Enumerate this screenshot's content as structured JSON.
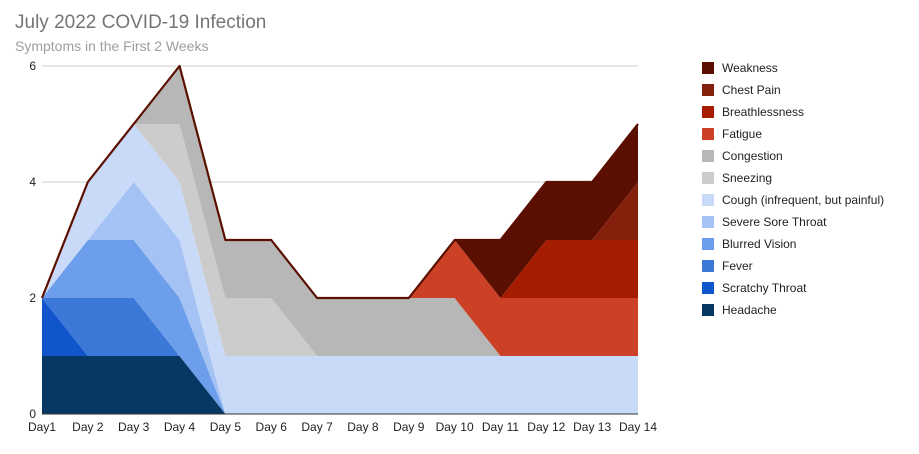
{
  "chart_data": {
    "type": "area",
    "stacked": true,
    "title": "July 2022 COVID-19 Infection",
    "subtitle": "Symptoms in the First 2 Weeks",
    "xlabel": "",
    "ylabel": "",
    "ylim": [
      0,
      6
    ],
    "yticks": [
      0,
      2,
      4,
      6
    ],
    "grid": true,
    "legend_position": "right",
    "categories": [
      "Day1",
      "Day 2",
      "Day 3",
      "Day 4",
      "Day 5",
      "Day 6",
      "Day 7",
      "Day 8",
      "Day 9",
      "Day 10",
      "Day 11",
      "Day 12",
      "Day 13",
      "Day 14"
    ],
    "series": [
      {
        "name": "Headache",
        "color": "#073763",
        "values": [
          1,
          1,
          1,
          1,
          0,
          0,
          0,
          0,
          0,
          0,
          0,
          0,
          0,
          0
        ]
      },
      {
        "name": "Scratchy Throat",
        "color": "#1155cc",
        "values": [
          1,
          0,
          0,
          0,
          0,
          0,
          0,
          0,
          0,
          0,
          0,
          0,
          0,
          0
        ]
      },
      {
        "name": "Fever",
        "color": "#3c78d8",
        "values": [
          0,
          1,
          1,
          0,
          0,
          0,
          0,
          0,
          0,
          0,
          0,
          0,
          0,
          0
        ]
      },
      {
        "name": "Blurred Vision",
        "color": "#6d9eeb",
        "values": [
          0,
          1,
          1,
          1,
          0,
          0,
          0,
          0,
          0,
          0,
          0,
          0,
          0,
          0
        ]
      },
      {
        "name": "Severe Sore Throat",
        "color": "#a4c2f4",
        "values": [
          0,
          0,
          1,
          1,
          0,
          0,
          0,
          0,
          0,
          0,
          0,
          0,
          0,
          0
        ]
      },
      {
        "name": "Cough (infrequent, but painful)",
        "color": "#c9daf8",
        "values": [
          0,
          1,
          1,
          1,
          1,
          1,
          1,
          1,
          1,
          1,
          1,
          1,
          1,
          1
        ]
      },
      {
        "name": "Sneezing",
        "color": "#cccccc",
        "values": [
          0,
          0,
          0,
          1,
          1,
          1,
          0,
          0,
          0,
          0,
          0,
          0,
          0,
          0
        ]
      },
      {
        "name": "Congestion",
        "color": "#b7b7b7",
        "values": [
          0,
          0,
          0,
          1,
          1,
          1,
          1,
          1,
          1,
          1,
          0,
          0,
          0,
          0
        ]
      },
      {
        "name": "Fatigue",
        "color": "#cc4125",
        "values": [
          0,
          0,
          0,
          0,
          0,
          0,
          0,
          0,
          0,
          1,
          1,
          1,
          1,
          1
        ]
      },
      {
        "name": "Breathlessness",
        "color": "#a61c00",
        "values": [
          0,
          0,
          0,
          0,
          0,
          0,
          0,
          0,
          0,
          0,
          0,
          1,
          1,
          1
        ]
      },
      {
        "name": "Chest Pain",
        "color": "#85200c",
        "values": [
          0,
          0,
          0,
          0,
          0,
          0,
          0,
          0,
          0,
          0,
          0,
          0,
          0,
          1
        ]
      },
      {
        "name": "Weakness",
        "color": "#5b0f00",
        "values": [
          0,
          0,
          0,
          0,
          0,
          0,
          0,
          0,
          0,
          0,
          1,
          1,
          1,
          1
        ]
      }
    ],
    "total_line_color": "#5b0f00",
    "legend_order": [
      "Weakness",
      "Chest Pain",
      "Breathlessness",
      "Fatigue",
      "Congestion",
      "Sneezing",
      "Cough (infrequent, but painful)",
      "Severe Sore Throat",
      "Blurred Vision",
      "Fever",
      "Scratchy Throat",
      "Headache"
    ]
  }
}
